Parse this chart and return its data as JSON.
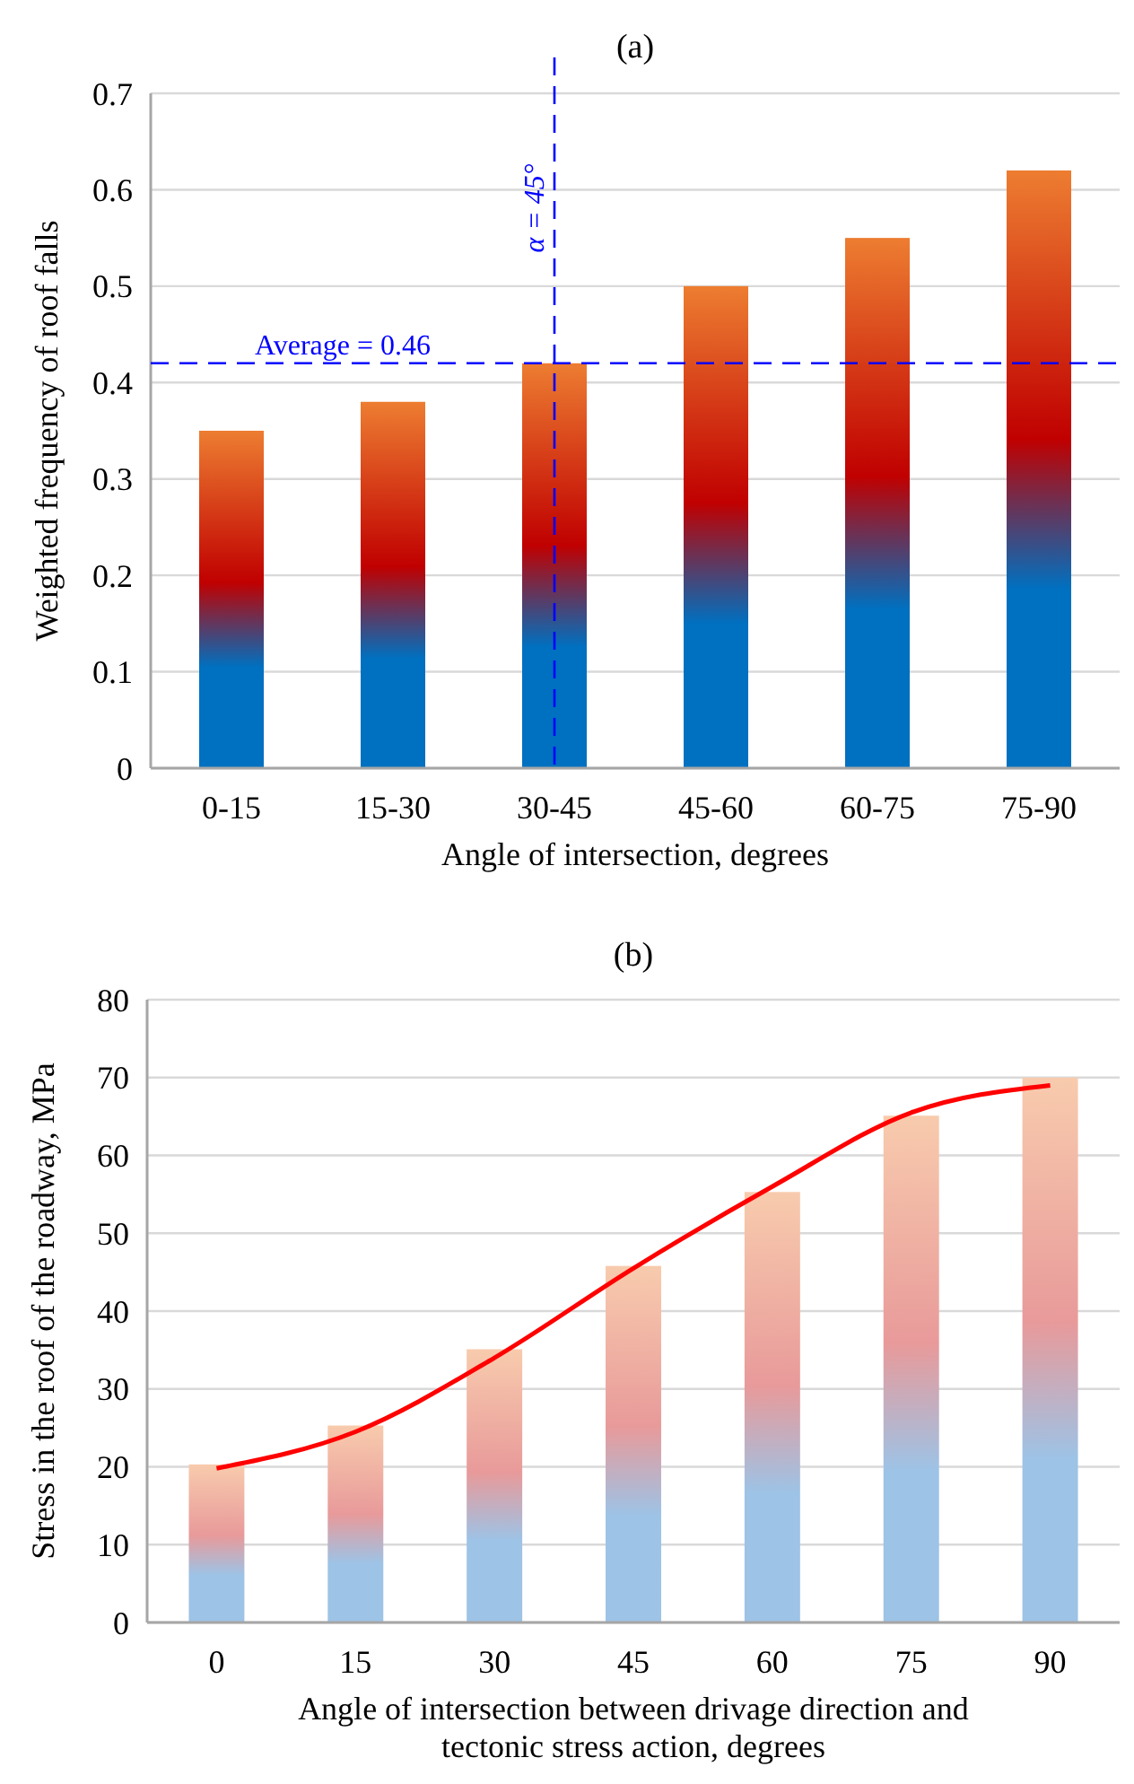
{
  "chart_data": [
    {
      "type": "bar",
      "title": "(a)",
      "xlabel": "Angle of intersection, degrees",
      "ylabel": "Weighted frequency of roof falls",
      "categories": [
        "0-15",
        "15-30",
        "30-45",
        "45-60",
        "60-75",
        "75-90"
      ],
      "series": [
        {
          "color": "#c00000",
          "values": [
            0.35,
            0.38,
            0.42,
            0.5,
            0.55,
            0.62
          ]
        }
      ],
      "ylim": [
        0,
        0.7
      ],
      "yticks": [
        0,
        0.1,
        0.2,
        0.3,
        0.4,
        0.5,
        0.6,
        0.7
      ],
      "grid": "y",
      "annotations": [
        "Average = 0.46"
      ],
      "ref_lines": [
        {
          "axis": "y",
          "value": 0.42,
          "color": "#0000ff",
          "line_style": "dashed"
        },
        {
          "axis": "x",
          "value": "30-45",
          "label": "α = 45°",
          "color": "#0000ff",
          "line_style": "dashed"
        }
      ]
    },
    {
      "type": "bar",
      "title": "(b)",
      "xlabel": "Angle of intersection between drivage direction and tectonic stress action, degrees",
      "ylabel": "Stress in the roof of the roadway, MPa",
      "categories": [
        "0",
        "15",
        "30",
        "45",
        "60",
        "75",
        "90"
      ],
      "series": [
        {
          "color": "#e89a9a",
          "values": [
            20.3,
            25.3,
            35.1,
            45.8,
            55.3,
            65.1,
            70
          ]
        },
        {
          "type": "line",
          "color": "#ff0000",
          "values": [
            19.8,
            24.5,
            34,
            45.5,
            56,
            65.5,
            69
          ],
          "marker": "none",
          "line_style": "solid"
        }
      ],
      "ylim": [
        0,
        80
      ],
      "yticks": [
        0,
        10,
        20,
        30,
        40,
        50,
        60,
        70,
        80
      ],
      "grid": "y"
    }
  ]
}
